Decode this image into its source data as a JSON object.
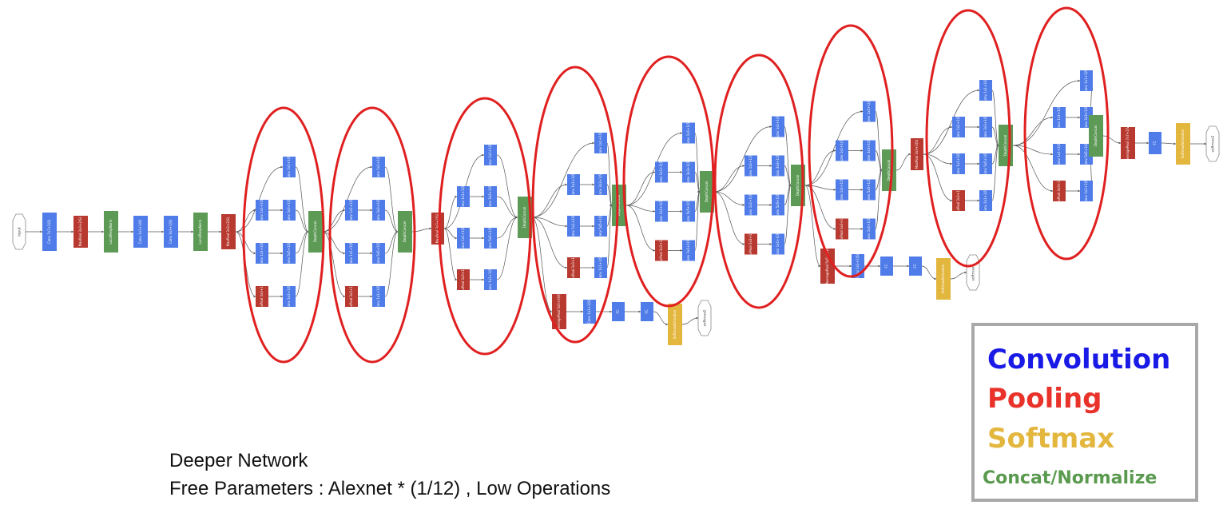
{
  "colors": {
    "convolution": "#4f7ce8",
    "pooling": "#b8392f",
    "softmax": "#e3b63e",
    "concat": "#5c9a55",
    "highlight": "#e02020",
    "legend_convolution": "#1a1ae6",
    "legend_pooling": "#e8322a",
    "legend_softmax": "#e3b63e",
    "legend_concat": "#5a9a4f"
  },
  "caption": {
    "line1": "Deeper Network",
    "line2": "Free Parameters : Alexnet * (1/12) , Low Operations"
  },
  "legend": {
    "convolution": "Convolution",
    "pooling": "Pooling",
    "softmax": "Softmax",
    "concat": "Concat/Normalize"
  },
  "diagram": {
    "input": "input",
    "stem": [
      {
        "type": "conv",
        "label": "Conv 7x7+2(S)"
      },
      {
        "type": "pool",
        "label": "MaxPool 3x3+2(S)"
      },
      {
        "type": "concat",
        "label": "LocalRespNorm"
      },
      {
        "type": "conv",
        "label": "Conv 1x1+1(V)"
      },
      {
        "type": "conv",
        "label": "Conv 3x3+1(S)"
      },
      {
        "type": "concat",
        "label": "LocalRespNorm"
      },
      {
        "type": "pool",
        "label": "MaxPool 3x3+2(S)"
      }
    ],
    "inception_labels": {
      "reduce_a": "Conv 1x1+1(S)",
      "reduce_b": "Conv 1x1+1(S)",
      "pool": "MaxPool 3x3+1(S)",
      "branch_1": "Conv 1x1+1(S)",
      "branch_3": "Conv 3x3+1(S)",
      "branch_5": "Conv 5x5+1(S)",
      "branch_p": "Conv 1x1+1(S)",
      "concat": "DepthConcat"
    },
    "between_pools": [
      {
        "label": "MaxPool 3x3+2(S)"
      },
      {
        "label": "MaxPool 3x3+2(S)"
      }
    ],
    "aux_head": {
      "pool": "AveragePool 5x5+3(V)",
      "conv": "Conv 1x1+1(S)",
      "fc_a": "FC",
      "fc_b": "FC",
      "softmax": "SoftmaxActivation",
      "outputs": [
        "softmax0",
        "softmax1"
      ]
    },
    "final_head": {
      "pool": "AveragePool 7x7+1(V)",
      "fc": "FC",
      "softmax": "SoftmaxActivation",
      "output": "softmax2"
    }
  }
}
